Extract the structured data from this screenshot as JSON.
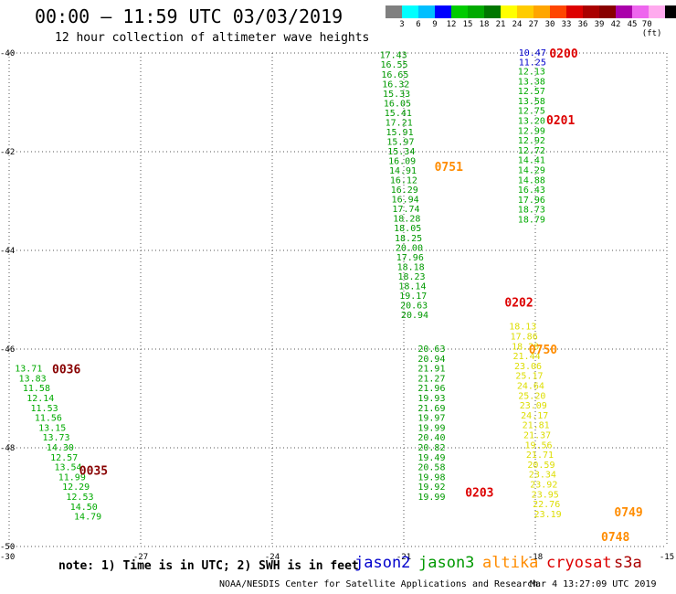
{
  "title": "00:00 – 11:59 UTC 03/03/2019",
  "subtitle": "12 hour collection of altimeter wave heights",
  "colorbar": {
    "colors": [
      "#808080",
      "#00ffff",
      "#00bfff",
      "#0000ff",
      "#00cc00",
      "#00aa00",
      "#007700",
      "#ffff00",
      "#ffcc00",
      "#ffa500",
      "#ff4500",
      "#dd0000",
      "#aa0000",
      "#880000",
      "#aa00aa",
      "#ee66ee",
      "#ffaaee",
      "#000000"
    ],
    "labels": [
      "3",
      "6",
      "9",
      "12",
      "15",
      "18",
      "21",
      "24",
      "27",
      "30",
      "33",
      "36",
      "39",
      "42",
      "45",
      "70 (ft)"
    ]
  },
  "axes": {
    "x_ticks": [
      "-30",
      "-27",
      "-24",
      "-21",
      "-18",
      "-15"
    ],
    "y_ticks": [
      "-40",
      "-42",
      "-44",
      "-46",
      "-48",
      "-50"
    ],
    "xlim": [
      -30,
      -15
    ],
    "ylim": [
      -50,
      -40
    ]
  },
  "note": "note: 1) Time is in UTC; 2) SWH is in feet",
  "legend": [
    {
      "name": "jason2",
      "color": "#0000cc"
    },
    {
      "name": "jason3",
      "color": "#009900"
    },
    {
      "name": "altika",
      "color": "#ff8c00"
    },
    {
      "name": "cryosat",
      "color": "#dd0000"
    },
    {
      "name": "s3a",
      "color": "#aa0000"
    }
  ],
  "credit": "NOAA/NESDIS Center for Satellite Applications and Research",
  "timestamp": "Mar  4 13:27:09 UTC 2019",
  "chart_data": {
    "type": "scatter",
    "time_labels": [
      {
        "text": "0200",
        "lon": -17.68,
        "lat": -40.0,
        "color": "#dd0000"
      },
      {
        "text": "0201",
        "lon": -17.75,
        "lat": -41.35,
        "color": "#dd0000"
      },
      {
        "text": "0751",
        "lon": -20.3,
        "lat": -42.3,
        "color": "#ff8c00"
      },
      {
        "text": "0202",
        "lon": -18.7,
        "lat": -45.05,
        "color": "#dd0000"
      },
      {
        "text": "0750",
        "lon": -18.15,
        "lat": -46.0,
        "color": "#ff8c00"
      },
      {
        "text": "0036",
        "lon": -29.02,
        "lat": -46.4,
        "color": "#880000"
      },
      {
        "text": "0035",
        "lon": -28.4,
        "lat": -48.45,
        "color": "#880000"
      },
      {
        "text": "0203",
        "lon": -19.6,
        "lat": -48.9,
        "color": "#dd0000"
      },
      {
        "text": "0749",
        "lon": -16.2,
        "lat": -49.3,
        "color": "#ff8c00"
      },
      {
        "text": "0748",
        "lon": -16.5,
        "lat": -49.8,
        "color": "#ff8c00"
      }
    ],
    "tracks": [
      {
        "name": "jason3",
        "color": "#009900",
        "start": [
          -21.55,
          -40.05
        ],
        "step": [
          0.018,
          -0.195
        ],
        "values": [
          "17.43",
          "16.55",
          "16.65",
          "16.32",
          "15.33",
          "16.05",
          "15.41",
          "17.21",
          "15.91",
          "15.97",
          "15.34",
          "16.09",
          "14.91",
          "16.12",
          "16.29",
          "16.94",
          "17.74",
          "18.28",
          "18.05",
          "18.25",
          "20.00",
          "17.96",
          "18.18",
          "18.23",
          "18.14",
          "19.17",
          "20.63",
          "20.94"
        ]
      },
      {
        "name": "jason3-b",
        "color": "#009900",
        "start": [
          -20.68,
          -46.0
        ],
        "step": [
          0.0,
          -0.2
        ],
        "values": [
          "20.63",
          "20.94",
          "21.91",
          "21.27",
          "21.96",
          "19.93",
          "21.69",
          "19.97",
          "19.99",
          "20.40",
          "20.82",
          "19.49",
          "20.58",
          "19.98",
          "19.92",
          "19.99"
        ]
      },
      {
        "name": "jason2",
        "color": "#0000cc",
        "start": [
          -18.38,
          -40.0
        ],
        "step": [
          0.0,
          -0.19
        ],
        "values": [
          "10.47",
          "11.25"
        ]
      },
      {
        "name": "altika-green",
        "color": "#00aa00",
        "start": [
          -18.4,
          -40.38
        ],
        "step": [
          0.0,
          -0.2
        ],
        "values": [
          "12.13",
          "13.38",
          "12.57",
          "13.58",
          "12.75",
          "13.20",
          "12.99",
          "12.92",
          "12.72",
          "14.41",
          "14.29",
          "14.88",
          "16.43",
          "17.96",
          "18.73",
          "18.79"
        ]
      },
      {
        "name": "altika-yellow",
        "color": "#dddd00",
        "start": [
          -18.6,
          -45.55
        ],
        "step": [
          0.03,
          -0.2
        ],
        "values": [
          "18.13",
          "17.86",
          "18.20",
          "21.44",
          "23.06",
          "25.17",
          "24.64",
          "25.20",
          "23.09",
          "24.17",
          "21.81",
          "21.37",
          "19.56",
          "21.71",
          "20.59",
          "23.34",
          "23.92",
          "23.95",
          "22.76",
          "23.19"
        ]
      },
      {
        "name": "s3a-west",
        "color": "#00aa00",
        "start": [
          -29.87,
          -46.4
        ],
        "step": [
          0.09,
          -0.2
        ],
        "values": [
          "13.71",
          "13.83",
          "11.58",
          "12.14",
          "11.53",
          "11.56",
          "13.15",
          "13.73",
          "14.30",
          "12.57",
          "13.54",
          "11.99",
          "12.29",
          "12.53",
          "14.50",
          "14.79"
        ]
      }
    ]
  }
}
